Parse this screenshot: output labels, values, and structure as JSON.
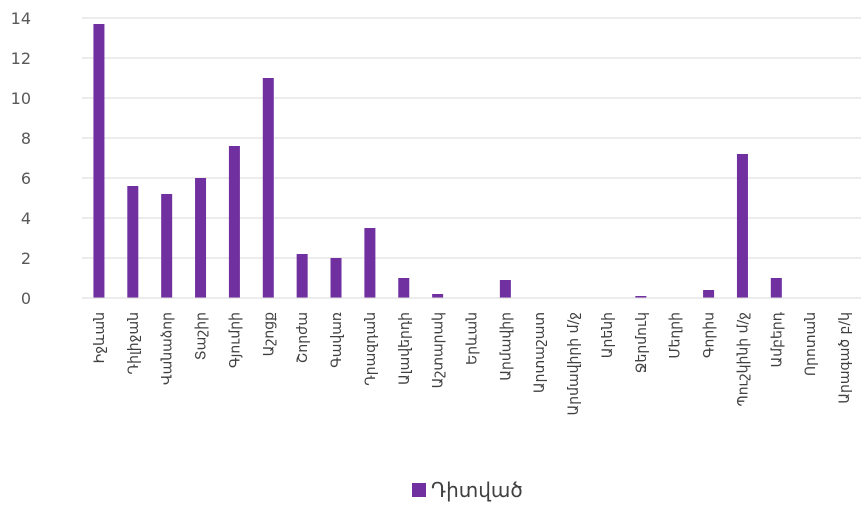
{
  "chart_data": {
    "type": "bar",
    "categories": [
      "Իջևան",
      "Դիլիջան",
      "Վանաձոր",
      "Տաշիր",
      "Գյումրի",
      "Աշոցք",
      "Շորժա",
      "Գավառ",
      "Դրազդան",
      "Ալավերդի",
      "Աշտարակ",
      "Երևան",
      "Արմավիր",
      "Արտաշատ",
      "Արմավիրի մ/ջ",
      "Արենի",
      "Ջերմուկ",
      "Մեղրի",
      "Գորիս",
      "Պուշկինի մ/ջ",
      "Ամբերդ",
      "Որոտան",
      "Արագած բ/կ"
    ],
    "series": [
      {
        "name": "Դիտված",
        "color": "#7030a0",
        "values": [
          13.7,
          5.6,
          5.2,
          6.0,
          7.6,
          11.0,
          2.2,
          2.0,
          3.5,
          1.0,
          0.2,
          0,
          0.9,
          0,
          0,
          0,
          0.1,
          0,
          0.4,
          7.2,
          1.0,
          0,
          0
        ]
      }
    ],
    "yticks": [
      0,
      2,
      4,
      6,
      8,
      10,
      12,
      14
    ],
    "ylim": [
      0,
      14
    ],
    "grid": true,
    "legend_position": "bottom"
  }
}
